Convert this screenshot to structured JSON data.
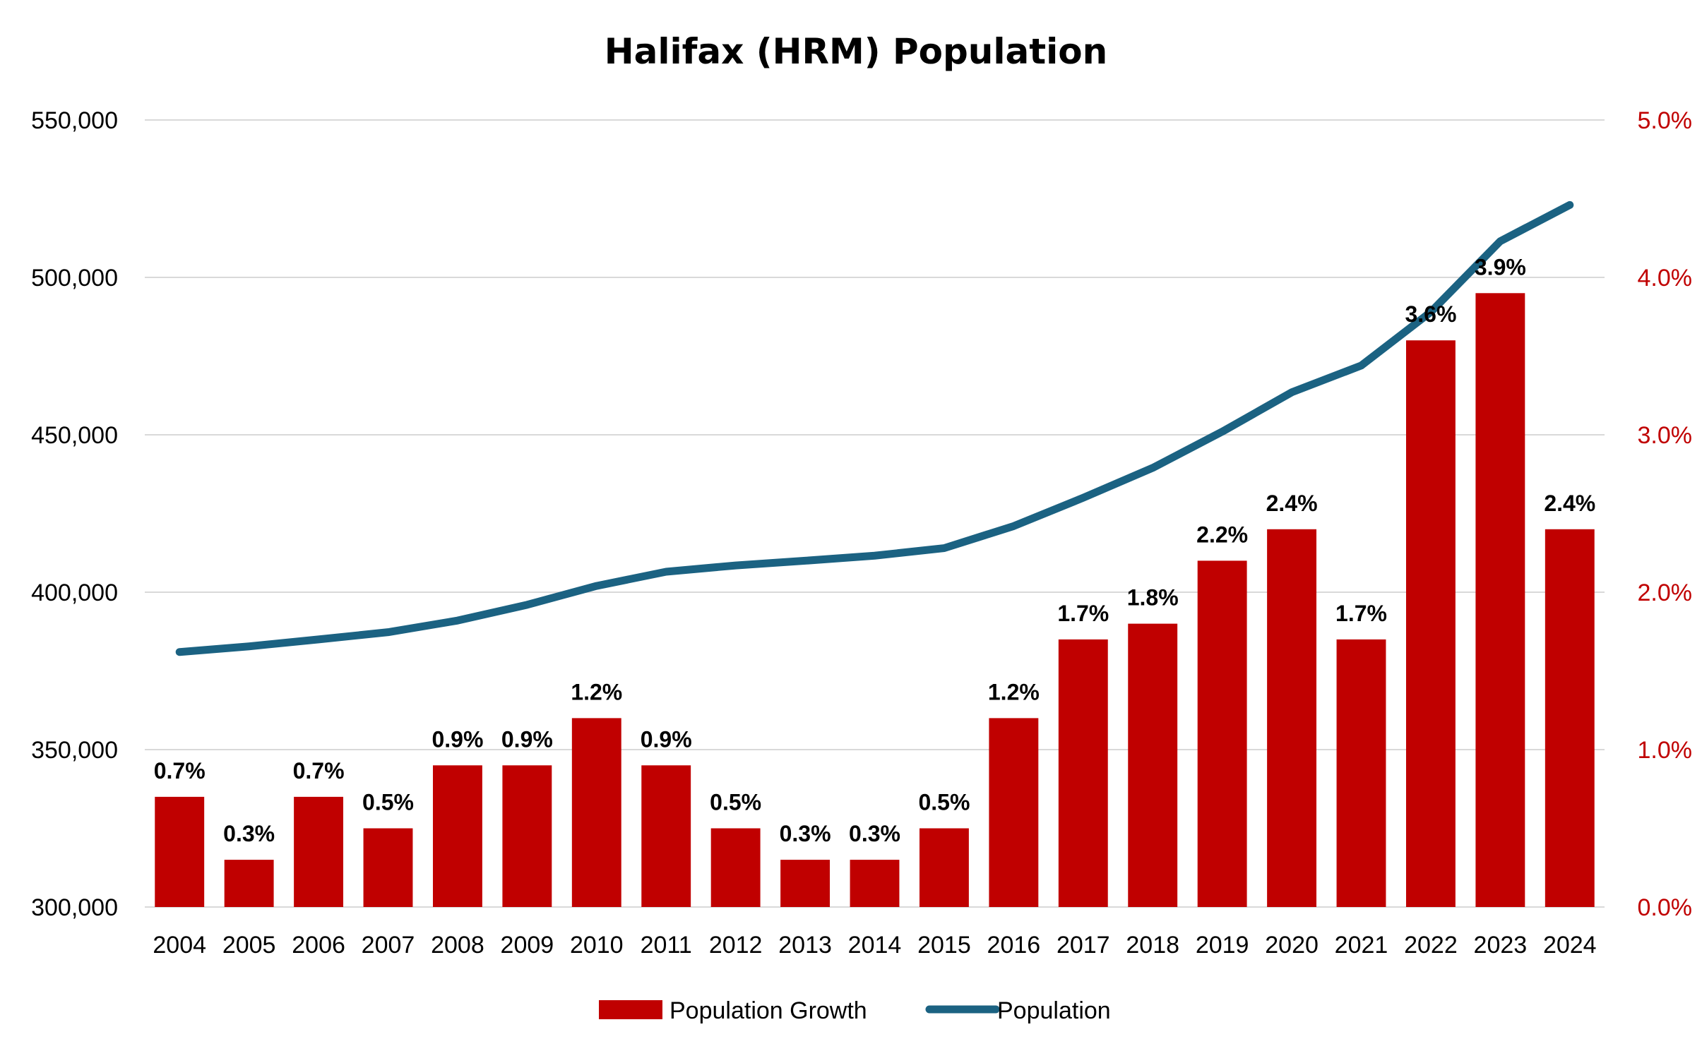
{
  "chart_data": {
    "type": "bar",
    "title": "Halifax (HRM) Population",
    "categories": [
      "2004",
      "2005",
      "2006",
      "2007",
      "2008",
      "2009",
      "2010",
      "2011",
      "2012",
      "2013",
      "2014",
      "2015",
      "2016",
      "2017",
      "2018",
      "2019",
      "2020",
      "2021",
      "2022",
      "2023",
      "2024"
    ],
    "series": [
      {
        "name": "Population Growth",
        "type": "bar",
        "axis": "right",
        "color": "#c00000",
        "values": [
          0.7,
          0.3,
          0.7,
          0.5,
          0.9,
          0.9,
          1.2,
          0.9,
          0.5,
          0.3,
          0.3,
          0.5,
          1.2,
          1.7,
          1.8,
          2.2,
          2.4,
          1.7,
          3.6,
          3.9,
          2.4
        ],
        "labels": [
          "0.7%",
          "0.3%",
          "0.7%",
          "0.5%",
          "0.9%",
          "0.9%",
          "1.2%",
          "0.9%",
          "0.5%",
          "0.3%",
          "0.3%",
          "0.5%",
          "1.2%",
          "1.7%",
          "1.8%",
          "2.2%",
          "2.4%",
          "1.7%",
          "3.6%",
          "3.9%",
          "2.4%"
        ]
      },
      {
        "name": "Population",
        "type": "line",
        "axis": "left",
        "color": "#1b6282",
        "values": [
          381000,
          382800,
          385000,
          387300,
          391000,
          396000,
          402000,
          406500,
          408500,
          410000,
          411600,
          414000,
          421000,
          430000,
          439500,
          451000,
          463500,
          472000,
          489000,
          511500,
          523000
        ]
      }
    ],
    "y_left": {
      "min": 300000,
      "max": 550000,
      "step": 50000,
      "ticks": [
        "300,000",
        "350,000",
        "400,000",
        "450,000",
        "500,000",
        "550,000"
      ]
    },
    "y_right": {
      "min": 0,
      "max": 5,
      "step": 1,
      "ticks": [
        "0.0%",
        "1.0%",
        "2.0%",
        "3.0%",
        "4.0%",
        "5.0%"
      ],
      "color": "#c00000"
    },
    "grid": true,
    "legend": {
      "position": "bottom",
      "entries": [
        "Population Growth",
        "Population"
      ]
    }
  }
}
